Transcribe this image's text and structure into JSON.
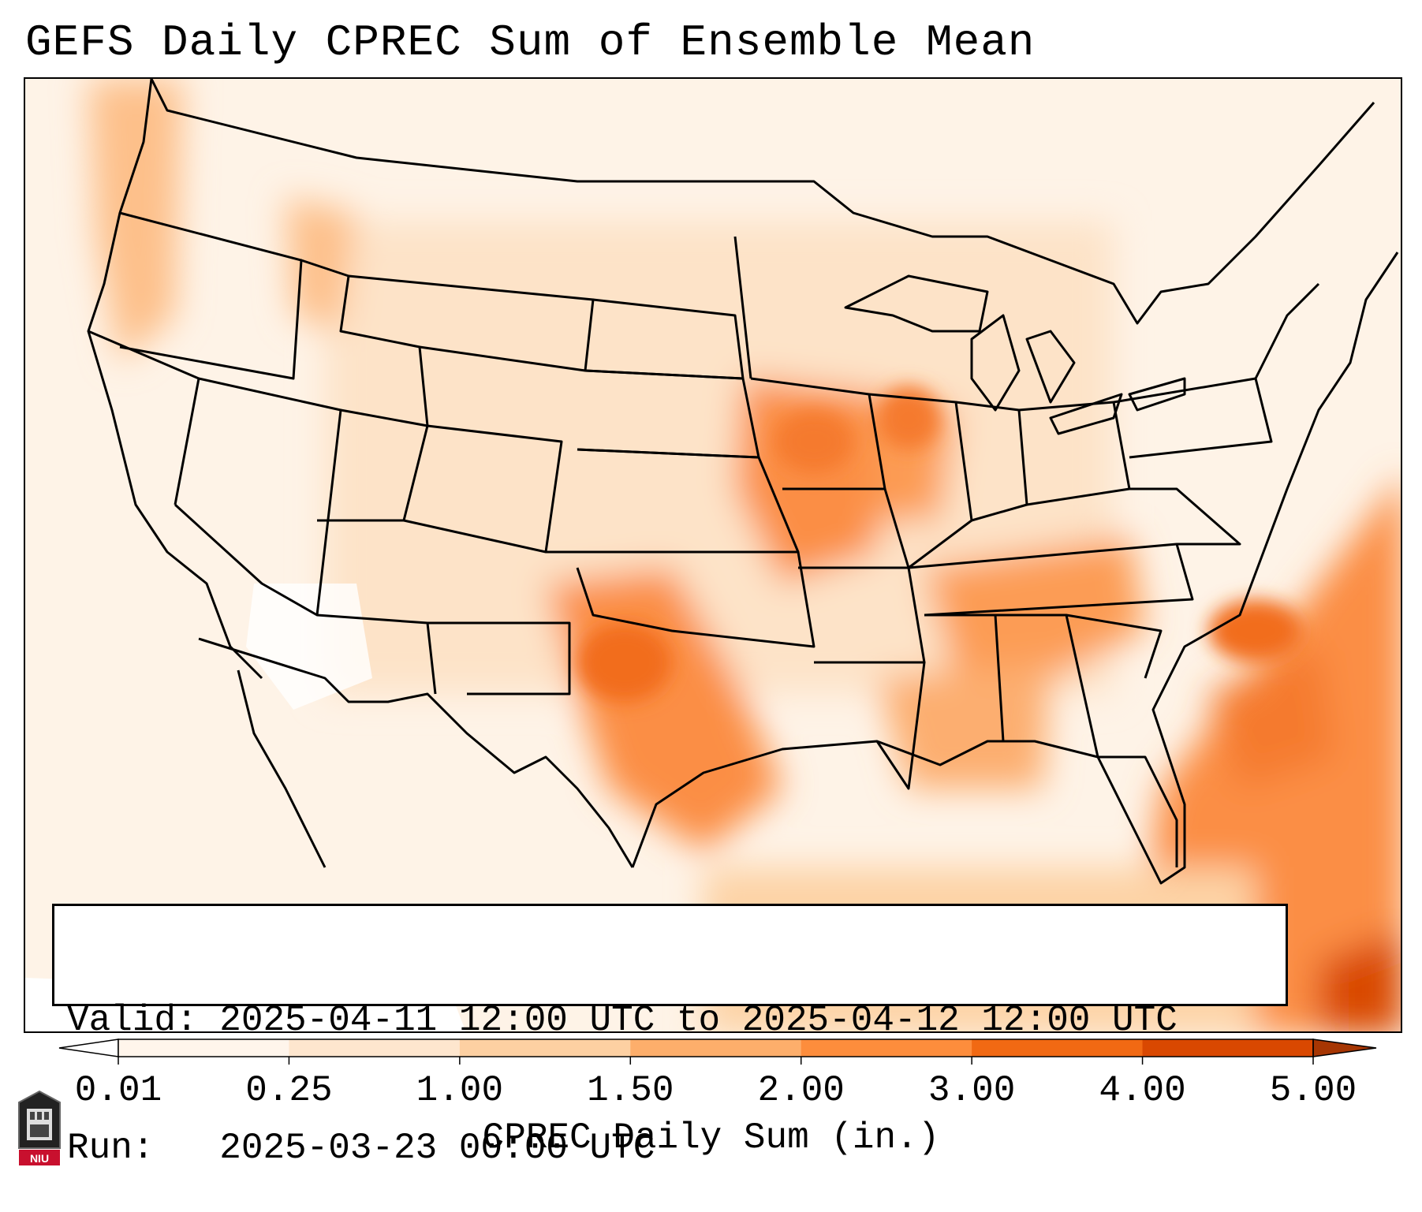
{
  "title": "GEFS Daily CPREC Sum of Ensemble Mean",
  "info": {
    "valid": "Valid: 2025-04-11 12:00 UTC to 2025-04-12 12:00 UTC",
    "run": "Run:   2025-03-23 00:00 UTC"
  },
  "colorbar": {
    "label": "CPREC Daily Sum (in.)",
    "ticks": [
      "0.01",
      "0.25",
      "1.00",
      "1.50",
      "2.00",
      "3.00",
      "4.00",
      "5.00"
    ],
    "colors": [
      "#fff5eb",
      "#fee6ce",
      "#fdd0a2",
      "#fdae6b",
      "#fd8d3c",
      "#f16913",
      "#d94801",
      "#a63603"
    ],
    "under_color": "#ffffff",
    "over_color": "#7f2704"
  },
  "logo": {
    "text": "NIU",
    "icon": "niu-logo"
  },
  "map": {
    "region": "Contiguous United States",
    "precip_regions": [
      "Southern Plains / Oklahoma / North Texas",
      "Mid-Mississippi Valley / Iowa / Missouri / Illinois",
      "Tennessee Valley / Southeast",
      "Western Atlantic offshore band",
      "Pacific Northwest coast"
    ]
  }
}
